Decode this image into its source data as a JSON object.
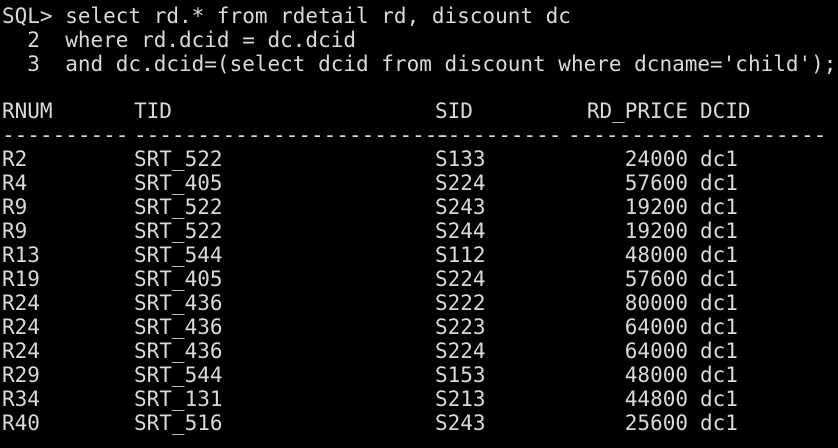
{
  "console": {
    "prompt": "SQL>",
    "query_lines": [
      "SQL> select rd.* from rdetail rd, discount dc",
      "  2  where rd.dcid = dc.dcid",
      "  3  and dc.dcid=(select dcid from discount where dcname='child');"
    ],
    "clipped_line": "- - -  - - - -  - - -  - - - - - - - - - -  - - - - -   - -"
  },
  "result": {
    "columns": {
      "rnum": "RNUM",
      "tid": "TID",
      "sid": "SID",
      "rd_price": "RD_PRICE",
      "dcid": "DCID"
    },
    "separators": {
      "rnum": "----------",
      "tid": "-------------------------",
      "sid": "----------",
      "rd_price": "----------",
      "dcid": "----------"
    },
    "rows": [
      {
        "rnum": "R2",
        "tid": "SRT_522",
        "sid": "S133",
        "rd_price": "24000",
        "dcid": "dc1"
      },
      {
        "rnum": "R4",
        "tid": "SRT_405",
        "sid": "S224",
        "rd_price": "57600",
        "dcid": "dc1"
      },
      {
        "rnum": "R9",
        "tid": "SRT_522",
        "sid": "S243",
        "rd_price": "19200",
        "dcid": "dc1"
      },
      {
        "rnum": "R9",
        "tid": "SRT_522",
        "sid": "S244",
        "rd_price": "19200",
        "dcid": "dc1"
      },
      {
        "rnum": "R13",
        "tid": "SRT_544",
        "sid": "S112",
        "rd_price": "48000",
        "dcid": "dc1"
      },
      {
        "rnum": "R19",
        "tid": "SRT_405",
        "sid": "S224",
        "rd_price": "57600",
        "dcid": "dc1"
      },
      {
        "rnum": "R24",
        "tid": "SRT_436",
        "sid": "S222",
        "rd_price": "80000",
        "dcid": "dc1"
      },
      {
        "rnum": "R24",
        "tid": "SRT_436",
        "sid": "S223",
        "rd_price": "64000",
        "dcid": "dc1"
      },
      {
        "rnum": "R24",
        "tid": "SRT_436",
        "sid": "S224",
        "rd_price": "64000",
        "dcid": "dc1"
      },
      {
        "rnum": "R29",
        "tid": "SRT_544",
        "sid": "S153",
        "rd_price": "48000",
        "dcid": "dc1"
      },
      {
        "rnum": "R34",
        "tid": "SRT_131",
        "sid": "S213",
        "rd_price": "44800",
        "dcid": "dc1"
      },
      {
        "rnum": "R40",
        "tid": "SRT_516",
        "sid": "S243",
        "rd_price": "25600",
        "dcid": "dc1"
      }
    ]
  },
  "colors": {
    "background": "#000000",
    "text": "#d9d9d9"
  }
}
